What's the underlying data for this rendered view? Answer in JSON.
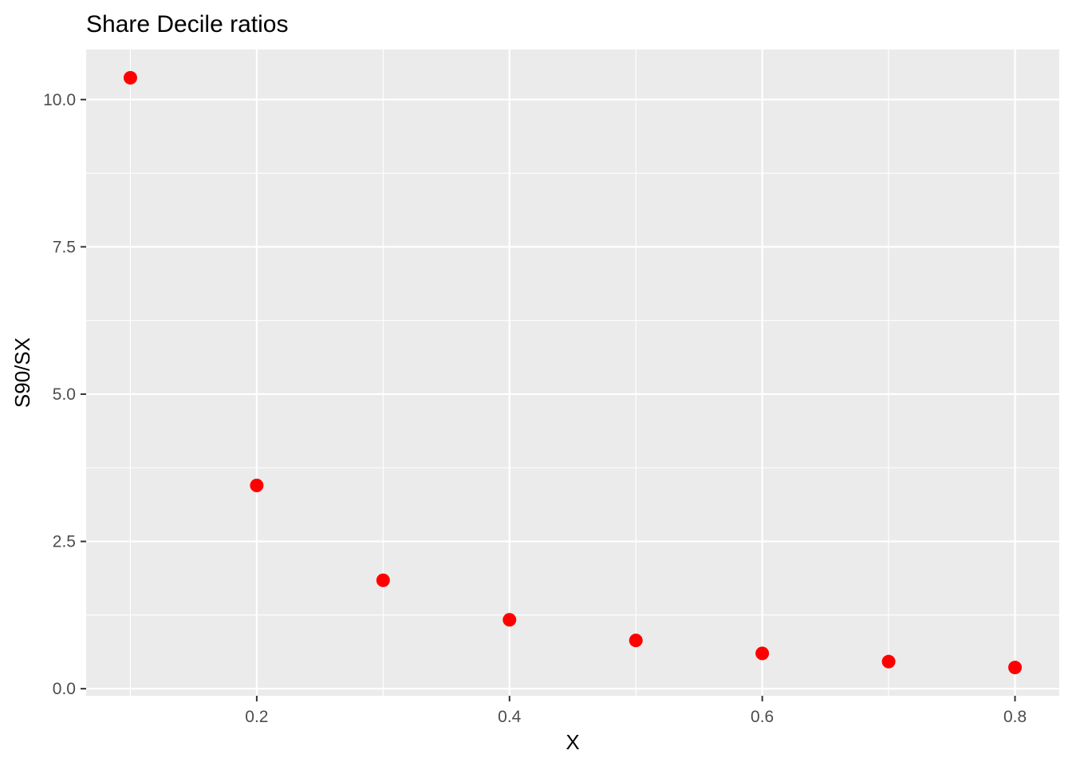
{
  "chart_data": {
    "type": "scatter",
    "title": "Share Decile ratios",
    "xlabel": "X",
    "ylabel": "S90/SX",
    "x_ticks": [
      0.2,
      0.4,
      0.6,
      0.8
    ],
    "x_tick_labels": [
      "0.2",
      "0.4",
      "0.6",
      "0.8"
    ],
    "y_ticks": [
      0.0,
      2.5,
      5.0,
      7.5,
      10.0
    ],
    "y_tick_labels": [
      "0.0",
      "2.5",
      "5.0",
      "7.5",
      "10.0"
    ],
    "xlim": [
      0.065,
      0.835
    ],
    "ylim": [
      -0.12,
      10.85
    ],
    "grid": true,
    "background": "#ebebeb",
    "point_color": "#ff0000",
    "series": [
      {
        "x": [
          0.1,
          0.2,
          0.3,
          0.4,
          0.5,
          0.6,
          0.7,
          0.8
        ],
        "y": [
          10.37,
          3.45,
          1.84,
          1.17,
          0.82,
          0.6,
          0.46,
          0.36
        ]
      }
    ]
  }
}
